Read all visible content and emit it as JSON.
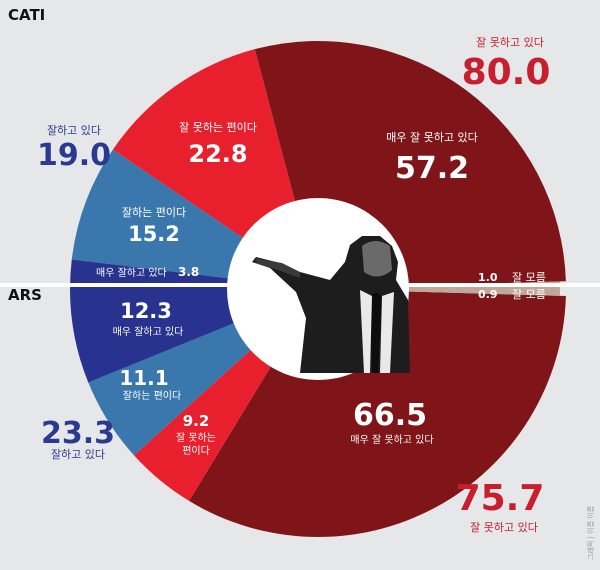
{
  "colors": {
    "background": "#e6e7e9",
    "very_bad": "#7f1518",
    "bad": "#e8202d",
    "good": "#3a77ad",
    "very_good": "#27338e",
    "unknown": "#bfa79a",
    "total_bad_text": "#c71f2d",
    "total_good_text": "#2a3a8f",
    "separator": "#ffffff"
  },
  "chart_data": [
    {
      "type": "pie",
      "title": "CATI",
      "half": "top",
      "slices": [
        {
          "key": "very_bad",
          "label": "매우 잘 못하고 있다",
          "value": 57.2
        },
        {
          "key": "bad",
          "label": "잘 못하는 편이다",
          "value": 22.8
        },
        {
          "key": "good",
          "label": "잘하는 편이다",
          "value": 15.2
        },
        {
          "key": "very_good",
          "label": "매우 잘하고 있다",
          "value": 3.8
        },
        {
          "key": "unknown",
          "label": "잘 모름",
          "value": 1.0
        }
      ],
      "totals": [
        {
          "label": "잘 못하고 있다",
          "value": "80.0"
        },
        {
          "label": "잘하고 있다",
          "value": "19.0"
        }
      ]
    },
    {
      "type": "pie",
      "title": "ARS",
      "half": "bottom",
      "slices": [
        {
          "key": "very_bad",
          "label": "매우 잘 못하고 있다",
          "value": 66.5
        },
        {
          "key": "bad",
          "label": "잘 못하는 편이다",
          "value": 9.2
        },
        {
          "key": "good",
          "label": "잘하는 편이다",
          "value": 11.1
        },
        {
          "key": "very_good",
          "label": "매우 잘하고 있다",
          "value": 12.3
        },
        {
          "key": "unknown",
          "label": "잘 모름",
          "value": 0.9
        }
      ],
      "totals": [
        {
          "label": "잘 못하고 있다",
          "value": "75.7"
        },
        {
          "label": "잘하고 있다",
          "value": "23.3"
        }
      ]
    }
  ],
  "labels": {
    "cati": "CATI",
    "ars": "ARS",
    "cati_bad_total_label": "잘 못하고 있다",
    "cati_bad_total_value": "80.0",
    "cati_good_total_label": "잘하고 있다",
    "cati_good_total_value": "19.0",
    "ars_bad_total_label": "잘 못하고 있다",
    "ars_bad_total_value": "75.7",
    "ars_good_total_label": "잘하고 있다",
    "ars_good_total_value": "23.3",
    "credit": "그래픽 | 이름 이름"
  }
}
